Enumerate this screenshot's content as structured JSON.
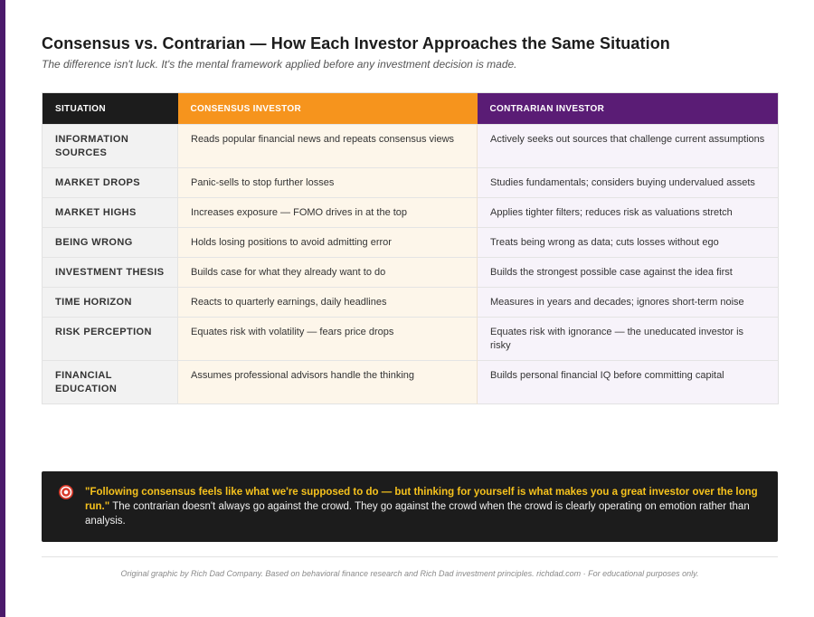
{
  "title": "Consensus vs. Contrarian — How Each Investor Approaches the Same Situation",
  "subtitle": "The difference isn't luck. It's the mental framework applied before any investment decision is made.",
  "colors": {
    "header_dark": "#1c1c1c",
    "consensus_accent": "#f6941d",
    "contrarian_accent": "#5a1c75",
    "quote_highlight": "#f6c21d"
  },
  "table": {
    "headers": [
      "SITUATION",
      "CONSENSUS INVESTOR",
      "CONTRARIAN INVESTOR"
    ],
    "rows": [
      {
        "situation": "INFORMATION SOURCES",
        "consensus": "Reads popular financial news and repeats consensus views",
        "contrarian": "Actively seeks out sources that challenge current assumptions"
      },
      {
        "situation": "MARKET DROPS",
        "consensus": "Panic-sells to stop further losses",
        "contrarian": "Studies fundamentals; considers buying undervalued assets"
      },
      {
        "situation": "MARKET HIGHS",
        "consensus": "Increases exposure — FOMO drives in at the top",
        "contrarian": "Applies tighter filters; reduces risk as valuations stretch"
      },
      {
        "situation": "BEING WRONG",
        "consensus": "Holds losing positions to avoid admitting error",
        "contrarian": "Treats being wrong as data; cuts losses without ego"
      },
      {
        "situation": "INVESTMENT THESIS",
        "consensus": "Builds case for what they already want to do",
        "contrarian": "Builds the strongest possible case against the idea first"
      },
      {
        "situation": "TIME HORIZON",
        "consensus": "Reacts to quarterly earnings, daily headlines",
        "contrarian": "Measures in years and decades; ignores short-term noise"
      },
      {
        "situation": "RISK PERCEPTION",
        "consensus": "Equates risk with volatility — fears price drops",
        "contrarian": "Equates risk with ignorance — the uneducated investor is risky"
      },
      {
        "situation": "FINANCIAL EDUCATION",
        "consensus": "Assumes professional advisors handle the thinking",
        "contrarian": "Builds personal financial IQ before committing capital"
      }
    ]
  },
  "callout": {
    "icon": "target-icon",
    "quote": "\"Following consensus feels like what we're supposed to do — but thinking for yourself is what makes you a great investor over the long run.\"",
    "text": "The contrarian doesn't always go against the crowd. They go against the crowd when the crowd is clearly operating on emotion rather than analysis."
  },
  "footer": "Original graphic by Rich Dad Company. Based on behavioral finance research and Rich Dad investment principles. richdad.com · For educational purposes only."
}
